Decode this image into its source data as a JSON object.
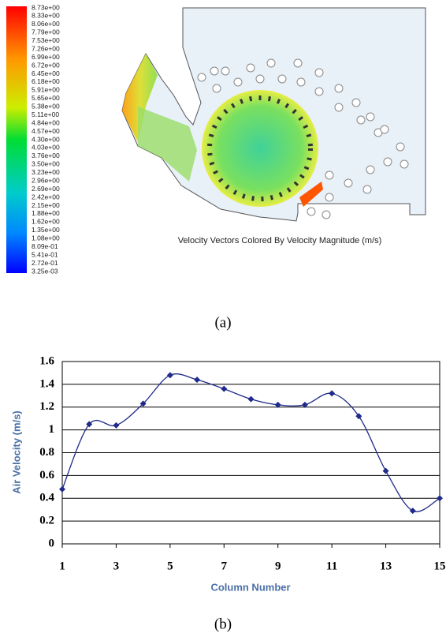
{
  "panel_a": {
    "colorbar_labels": [
      "8.73e+00",
      "8.33e+00",
      "8.06e+00",
      "7.79e+00",
      "7.53e+00",
      "7.26e+00",
      "6.99e+00",
      "6.72e+00",
      "6.45e+00",
      "6.18e+00",
      "5.91e+00",
      "5.65e+00",
      "5.38e+00",
      "5.11e+00",
      "4.84e+00",
      "4.57e+00",
      "4.30e+00",
      "4.03e+00",
      "3.76e+00",
      "3.50e+00",
      "3.23e+00",
      "2.96e+00",
      "2.69e+00",
      "2.42e+00",
      "2.15e+00",
      "1.88e+00",
      "1.62e+00",
      "1.35e+00",
      "1.08e+00",
      "8.09e-01",
      "5.41e-01",
      "2.72e-01",
      "3.25e-03"
    ],
    "caption": "Velocity Vectors Colored By Velocity Magnitude (m/s)",
    "label": "(a)"
  },
  "chart_data": {
    "type": "line",
    "x": [
      1,
      2,
      3,
      4,
      5,
      6,
      7,
      8,
      9,
      10,
      11,
      12,
      13,
      14,
      15
    ],
    "values": [
      0.48,
      1.05,
      1.04,
      1.23,
      1.48,
      1.44,
      1.36,
      1.27,
      1.22,
      1.22,
      1.32,
      1.12,
      0.64,
      0.29,
      0.4
    ],
    "color": "#1f2a8a",
    "xlim": [
      1,
      15
    ],
    "xticks": [
      1,
      3,
      5,
      7,
      9,
      11,
      13,
      15
    ],
    "ylim": [
      0,
      1.6
    ],
    "yticks": [
      0,
      0.2,
      0.4,
      0.6,
      0.8,
      1,
      1.2,
      1.4,
      1.6
    ],
    "grid": true,
    "x_label": "Column Number",
    "y_label": "Air Velocity  (m/s)",
    "label": "(b)"
  }
}
